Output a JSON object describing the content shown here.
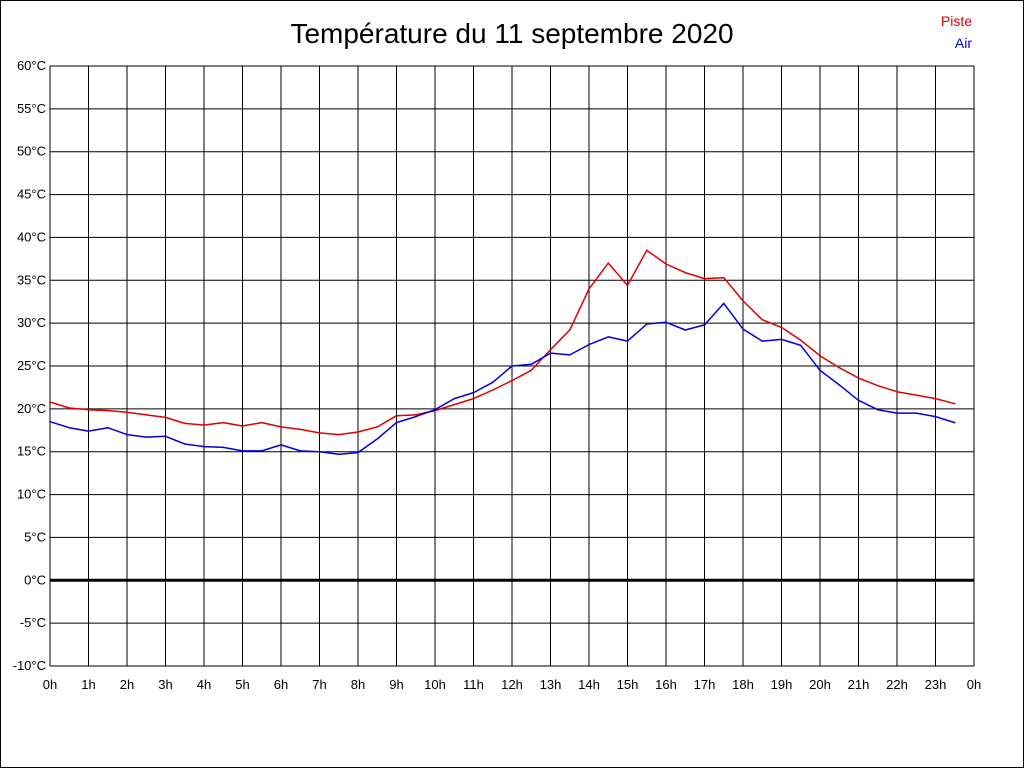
{
  "chart_data": {
    "type": "line",
    "title": "Température du 11 septembre 2020",
    "ylim": [
      -10,
      60
    ],
    "xlim": [
      0,
      24
    ],
    "grid": true,
    "legend_position": "top-right",
    "y_ticks": [
      {
        "value": 60,
        "label": "60°C"
      },
      {
        "value": 55,
        "label": "55°C"
      },
      {
        "value": 50,
        "label": "50°C"
      },
      {
        "value": 45,
        "label": "45°C"
      },
      {
        "value": 40,
        "label": "40°C"
      },
      {
        "value": 35,
        "label": "35°C"
      },
      {
        "value": 30,
        "label": "30°C"
      },
      {
        "value": 25,
        "label": "25°C"
      },
      {
        "value": 20,
        "label": "20°C"
      },
      {
        "value": 15,
        "label": "15°C"
      },
      {
        "value": 10,
        "label": "10°C"
      },
      {
        "value": 5,
        "label": "5°C"
      },
      {
        "value": 0,
        "label": "0°C"
      },
      {
        "value": -5,
        "label": "-5°C"
      },
      {
        "value": -10,
        "label": "-10°C"
      }
    ],
    "x_ticks": [
      {
        "value": 0,
        "label": "0h"
      },
      {
        "value": 1,
        "label": "1h"
      },
      {
        "value": 2,
        "label": "2h"
      },
      {
        "value": 3,
        "label": "3h"
      },
      {
        "value": 4,
        "label": "4h"
      },
      {
        "value": 5,
        "label": "5h"
      },
      {
        "value": 6,
        "label": "6h"
      },
      {
        "value": 7,
        "label": "7h"
      },
      {
        "value": 8,
        "label": "8h"
      },
      {
        "value": 9,
        "label": "9h"
      },
      {
        "value": 10,
        "label": "10h"
      },
      {
        "value": 11,
        "label": "11h"
      },
      {
        "value": 12,
        "label": "12h"
      },
      {
        "value": 13,
        "label": "13h"
      },
      {
        "value": 14,
        "label": "14h"
      },
      {
        "value": 15,
        "label": "15h"
      },
      {
        "value": 16,
        "label": "16h"
      },
      {
        "value": 17,
        "label": "17h"
      },
      {
        "value": 18,
        "label": "18h"
      },
      {
        "value": 19,
        "label": "19h"
      },
      {
        "value": 20,
        "label": "20h"
      },
      {
        "value": 21,
        "label": "21h"
      },
      {
        "value": 22,
        "label": "22h"
      },
      {
        "value": 23,
        "label": "23h"
      },
      {
        "value": 24,
        "label": "0h"
      }
    ],
    "x": [
      0,
      0.5,
      1,
      1.5,
      2,
      2.5,
      3,
      3.5,
      4,
      4.5,
      5,
      5.5,
      6,
      6.5,
      7,
      7.5,
      8,
      8.5,
      9,
      9.5,
      10,
      10.5,
      11,
      11.5,
      12,
      12.5,
      13,
      13.5,
      14,
      14.5,
      15,
      15.5,
      16,
      16.5,
      17,
      17.5,
      18,
      18.5,
      19,
      19.5,
      20,
      20.5,
      21,
      21.5,
      22,
      22.5,
      23,
      23.5
    ],
    "series": [
      {
        "name": "Piste",
        "color": "#e00000",
        "values": [
          20.8,
          20.1,
          19.9,
          19.8,
          19.6,
          19.3,
          19.0,
          18.3,
          18.1,
          18.4,
          18.0,
          18.4,
          17.9,
          17.6,
          17.2,
          17.0,
          17.3,
          17.9,
          19.2,
          19.3,
          19.8,
          20.5,
          21.2,
          22.2,
          23.3,
          24.5,
          26.9,
          29.2,
          34.0,
          37.0,
          34.4,
          38.5,
          36.9,
          35.9,
          35.2,
          35.3,
          32.6,
          30.4,
          29.5,
          28.0,
          26.2,
          24.8,
          23.6,
          22.7,
          22.0,
          21.6,
          21.2,
          20.6
        ]
      },
      {
        "name": "Air",
        "color": "#0000e0",
        "values": [
          18.5,
          17.8,
          17.4,
          17.8,
          17.0,
          16.7,
          16.8,
          15.9,
          15.6,
          15.5,
          15.1,
          15.1,
          15.8,
          15.1,
          15.0,
          14.7,
          14.9,
          16.5,
          18.4,
          19.1,
          19.9,
          21.2,
          21.9,
          23.1,
          25.0,
          25.2,
          26.5,
          26.3,
          27.5,
          28.4,
          27.9,
          29.9,
          30.1,
          29.2,
          29.8,
          32.3,
          29.3,
          27.9,
          28.1,
          27.4,
          24.5,
          22.8,
          21.0,
          19.9,
          19.5,
          19.5,
          19.1,
          18.4
        ]
      }
    ]
  }
}
